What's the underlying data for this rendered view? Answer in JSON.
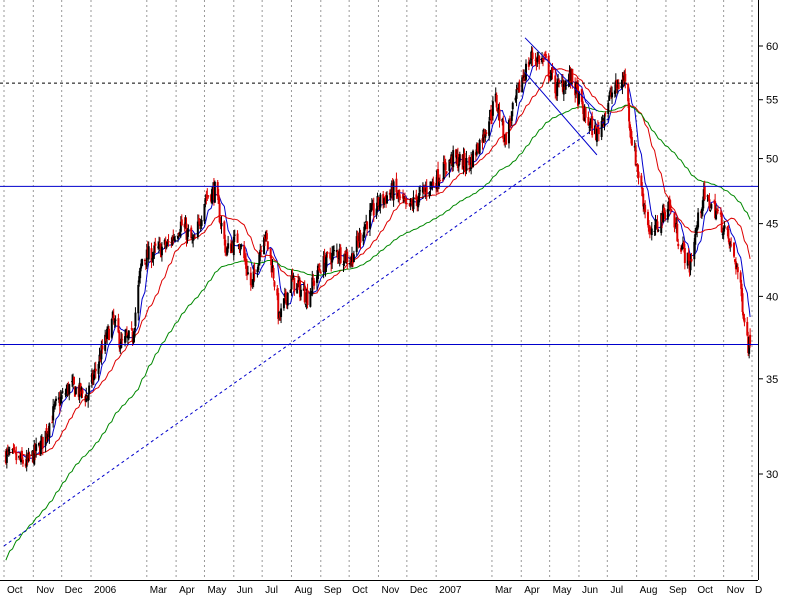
{
  "chart_data": {
    "type": "candlestick",
    "title": "",
    "xlabel": "",
    "ylabel": "",
    "y_scale": "log",
    "ylim": [
      25.5,
      65
    ],
    "grid": {
      "vertical_dotted": true,
      "horizontal": false
    },
    "legend": "none",
    "y_ticks": [
      30,
      35,
      40,
      45,
      50,
      55,
      60
    ],
    "x_ticks": [
      "Oct",
      "Nov",
      "Dec",
      "2006",
      "Mar",
      "Apr",
      "May",
      "Jun",
      "Jul",
      "Aug",
      "Sep",
      "Oct",
      "Nov",
      "Dec",
      "2007",
      "Mar",
      "Apr",
      "May",
      "Jun",
      "Jul",
      "Aug",
      "Sep",
      "Oct",
      "Nov",
      "D"
    ],
    "x_months": [
      "2005-10",
      "2005-11",
      "2005-12",
      "2006-01",
      "2006-03",
      "2006-04",
      "2006-05",
      "2006-06",
      "2006-07",
      "2006-08",
      "2006-09",
      "2006-10",
      "2006-11",
      "2006-12",
      "2007-01",
      "2007-03",
      "2007-04",
      "2007-05",
      "2007-06",
      "2007-07",
      "2007-08",
      "2007-09",
      "2007-10",
      "2007-11",
      "2007-12"
    ],
    "price_anchors": [
      [
        "2005-10-03",
        31.0
      ],
      [
        "2005-10-25",
        30.5
      ],
      [
        "2005-11-10",
        31.5
      ],
      [
        "2005-11-25",
        33.5
      ],
      [
        "2005-12-10",
        34.6
      ],
      [
        "2005-12-28",
        34.0
      ],
      [
        "2006-01-12",
        36.5
      ],
      [
        "2006-01-24",
        38.5
      ],
      [
        "2006-02-02",
        37.0
      ],
      [
        "2006-02-14",
        37.5
      ],
      [
        "2006-02-24",
        42.5
      ],
      [
        "2006-03-10",
        43.0
      ],
      [
        "2006-03-24",
        43.5
      ],
      [
        "2006-04-06",
        45.0
      ],
      [
        "2006-04-20",
        43.5
      ],
      [
        "2006-05-02",
        47.0
      ],
      [
        "2006-05-12",
        47.5
      ],
      [
        "2006-05-24",
        43.0
      ],
      [
        "2006-06-06",
        44.0
      ],
      [
        "2006-06-20",
        40.5
      ],
      [
        "2006-07-03",
        44.5
      ],
      [
        "2006-07-13",
        41.5
      ],
      [
        "2006-07-19",
        38.5
      ],
      [
        "2006-08-01",
        41.0
      ],
      [
        "2006-08-18",
        40.0
      ],
      [
        "2006-09-01",
        42.0
      ],
      [
        "2006-09-18",
        43.0
      ],
      [
        "2006-10-03",
        42.5
      ],
      [
        "2006-10-18",
        45.0
      ],
      [
        "2006-11-01",
        46.5
      ],
      [
        "2006-11-17",
        47.5
      ],
      [
        "2006-12-01",
        46.0
      ],
      [
        "2006-12-14",
        47.0
      ],
      [
        "2007-01-03",
        48.5
      ],
      [
        "2007-01-18",
        50.0
      ],
      [
        "2007-02-05",
        49.5
      ],
      [
        "2007-02-20",
        52.0
      ],
      [
        "2007-03-05",
        55.0
      ],
      [
        "2007-03-15",
        51.5
      ],
      [
        "2007-04-02",
        57.0
      ],
      [
        "2007-04-12",
        59.0
      ],
      [
        "2007-04-26",
        58.5
      ],
      [
        "2007-05-08",
        56.0
      ],
      [
        "2007-05-24",
        57.0
      ],
      [
        "2007-06-07",
        53.5
      ],
      [
        "2007-06-20",
        52.0
      ],
      [
        "2007-07-05",
        55.5
      ],
      [
        "2007-07-20",
        57.0
      ],
      [
        "2007-07-26",
        52.0
      ],
      [
        "2007-08-06",
        47.5
      ],
      [
        "2007-08-16",
        44.0
      ],
      [
        "2007-09-04",
        46.5
      ],
      [
        "2007-09-14",
        44.0
      ],
      [
        "2007-09-26",
        42.0
      ],
      [
        "2007-10-10",
        47.0
      ],
      [
        "2007-10-24",
        46.0
      ],
      [
        "2007-11-05",
        44.0
      ],
      [
        "2007-11-15",
        42.0
      ],
      [
        "2007-11-21",
        39.5
      ],
      [
        "2007-11-27",
        37.0
      ],
      [
        "2007-11-30",
        37.3
      ]
    ],
    "horizontal_lines": [
      {
        "value": 56.5,
        "style": "dashed",
        "color": "#000000"
      },
      {
        "value": 47.8,
        "style": "solid",
        "color": "#0000cc"
      },
      {
        "value": 37.0,
        "style": "solid",
        "color": "#0000cc"
      }
    ],
    "trend_lines": [
      {
        "from": [
          "2005-10-01",
          26.7
        ],
        "to": [
          "2007-07-05",
          53.5
        ],
        "style": "dashed",
        "color": "#0000cc"
      },
      {
        "from": [
          "2007-04-05",
          60.8
        ],
        "to": [
          "2007-06-20",
          54.0
        ],
        "style": "solid",
        "color": "#0000cc"
      },
      {
        "from": [
          "2007-04-05",
          57.5
        ],
        "to": [
          "2007-06-20",
          50.3
        ],
        "style": "solid",
        "color": "#0000cc"
      }
    ],
    "series": [
      {
        "type": "candles",
        "color": "#000000",
        "down_color": "#dd0000"
      },
      {
        "type": "moving_average",
        "period_days": 10,
        "color": "#0000cc"
      },
      {
        "type": "moving_average",
        "period_days": 30,
        "color": "#dd0000"
      },
      {
        "type": "moving_average",
        "period_days": 100,
        "color": "#008800",
        "start_value": 26.0
      }
    ],
    "colors": {
      "axis": "#000000",
      "grid": "#999999",
      "background": "#ffffff"
    }
  }
}
